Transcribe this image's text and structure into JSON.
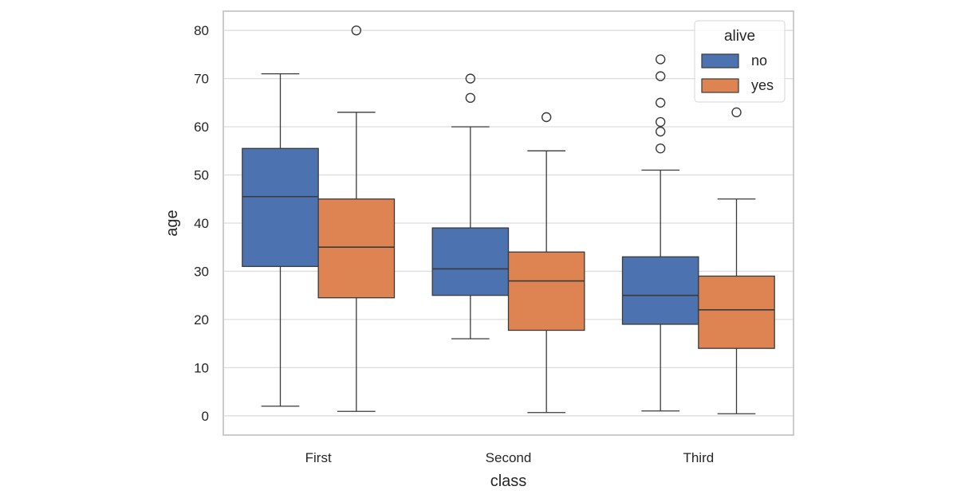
{
  "chart_data": {
    "type": "box",
    "xlabel": "class",
    "ylabel": "age",
    "ylim": [
      -4,
      84
    ],
    "y_ticks": [
      0,
      10,
      20,
      30,
      40,
      50,
      60,
      70,
      80
    ],
    "categories": [
      "First",
      "Second",
      "Third"
    ],
    "grid": "horizontal",
    "legend": {
      "title": "alive",
      "position": "top-right",
      "entries": [
        "no",
        "yes"
      ]
    },
    "colors": {
      "no": "#4c72b0",
      "yes": "#dd8452",
      "grid": "#dddddd",
      "frame": "#cccccc",
      "line": "#3a3a3a"
    },
    "series": [
      {
        "name": "no",
        "boxes": [
          {
            "category": "First",
            "whislo": 2,
            "q1": 31,
            "median": 45.5,
            "q3": 55.5,
            "whishi": 71,
            "fliers": []
          },
          {
            "category": "Second",
            "whislo": 16,
            "q1": 25,
            "median": 30.5,
            "q3": 39,
            "whishi": 60,
            "fliers": [
              66,
              70
            ]
          },
          {
            "category": "Third",
            "whislo": 1,
            "q1": 19,
            "median": 25,
            "q3": 33,
            "whishi": 51,
            "fliers": [
              55.5,
              59,
              61,
              65,
              70.5,
              74
            ]
          }
        ]
      },
      {
        "name": "yes",
        "boxes": [
          {
            "category": "First",
            "whislo": 0.92,
            "q1": 24.5,
            "median": 35,
            "q3": 45,
            "whishi": 63,
            "fliers": [
              80
            ]
          },
          {
            "category": "Second",
            "whislo": 0.67,
            "q1": 17.75,
            "median": 28,
            "q3": 34,
            "whishi": 55,
            "fliers": [
              62
            ]
          },
          {
            "category": "Third",
            "whislo": 0.42,
            "q1": 14,
            "median": 22,
            "q3": 29,
            "whishi": 45,
            "fliers": [
              63
            ]
          }
        ]
      }
    ]
  }
}
